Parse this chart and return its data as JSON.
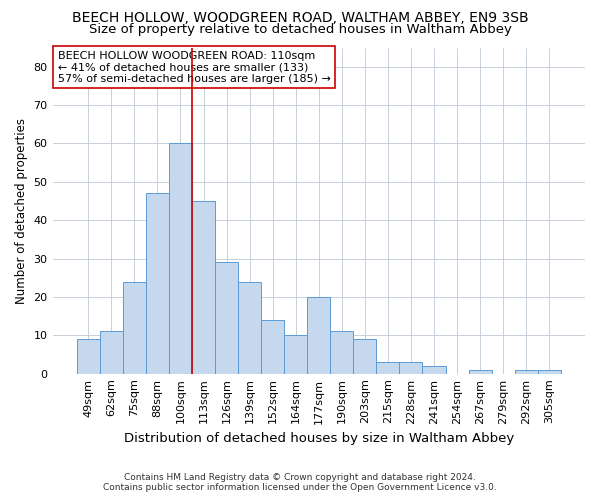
{
  "title1": "BEECH HOLLOW, WOODGREEN ROAD, WALTHAM ABBEY, EN9 3SB",
  "title2": "Size of property relative to detached houses in Waltham Abbey",
  "xlabel": "Distribution of detached houses by size in Waltham Abbey",
  "ylabel": "Number of detached properties",
  "categories": [
    "49sqm",
    "62sqm",
    "75sqm",
    "88sqm",
    "100sqm",
    "113sqm",
    "126sqm",
    "139sqm",
    "152sqm",
    "164sqm",
    "177sqm",
    "190sqm",
    "203sqm",
    "215sqm",
    "228sqm",
    "241sqm",
    "254sqm",
    "267sqm",
    "279sqm",
    "292sqm",
    "305sqm"
  ],
  "values": [
    9,
    11,
    24,
    47,
    60,
    45,
    29,
    24,
    14,
    10,
    20,
    11,
    9,
    3,
    3,
    2,
    0,
    1,
    0,
    1,
    1
  ],
  "bar_color": "#c5d8ee",
  "bar_edge_color": "#5b9bd5",
  "vline_color": "#cc0000",
  "vline_index": 5,
  "ylim": [
    0,
    85
  ],
  "yticks": [
    0,
    10,
    20,
    30,
    40,
    50,
    60,
    70,
    80
  ],
  "annotation_text": "BEECH HOLLOW WOODGREEN ROAD: 110sqm\n← 41% of detached houses are smaller (133)\n57% of semi-detached houses are larger (185) →",
  "annotation_box_color": "#ffffff",
  "annotation_box_edge": "#cc0000",
  "footer1": "Contains HM Land Registry data © Crown copyright and database right 2024.",
  "footer2": "Contains public sector information licensed under the Open Government Licence v3.0.",
  "bg_color": "#ffffff",
  "grid_color": "#c8d0dc",
  "title1_fontsize": 10,
  "title2_fontsize": 9.5,
  "ylabel_fontsize": 8.5,
  "xlabel_fontsize": 9.5,
  "tick_fontsize": 8,
  "annotation_fontsize": 8,
  "footer_fontsize": 6.5
}
